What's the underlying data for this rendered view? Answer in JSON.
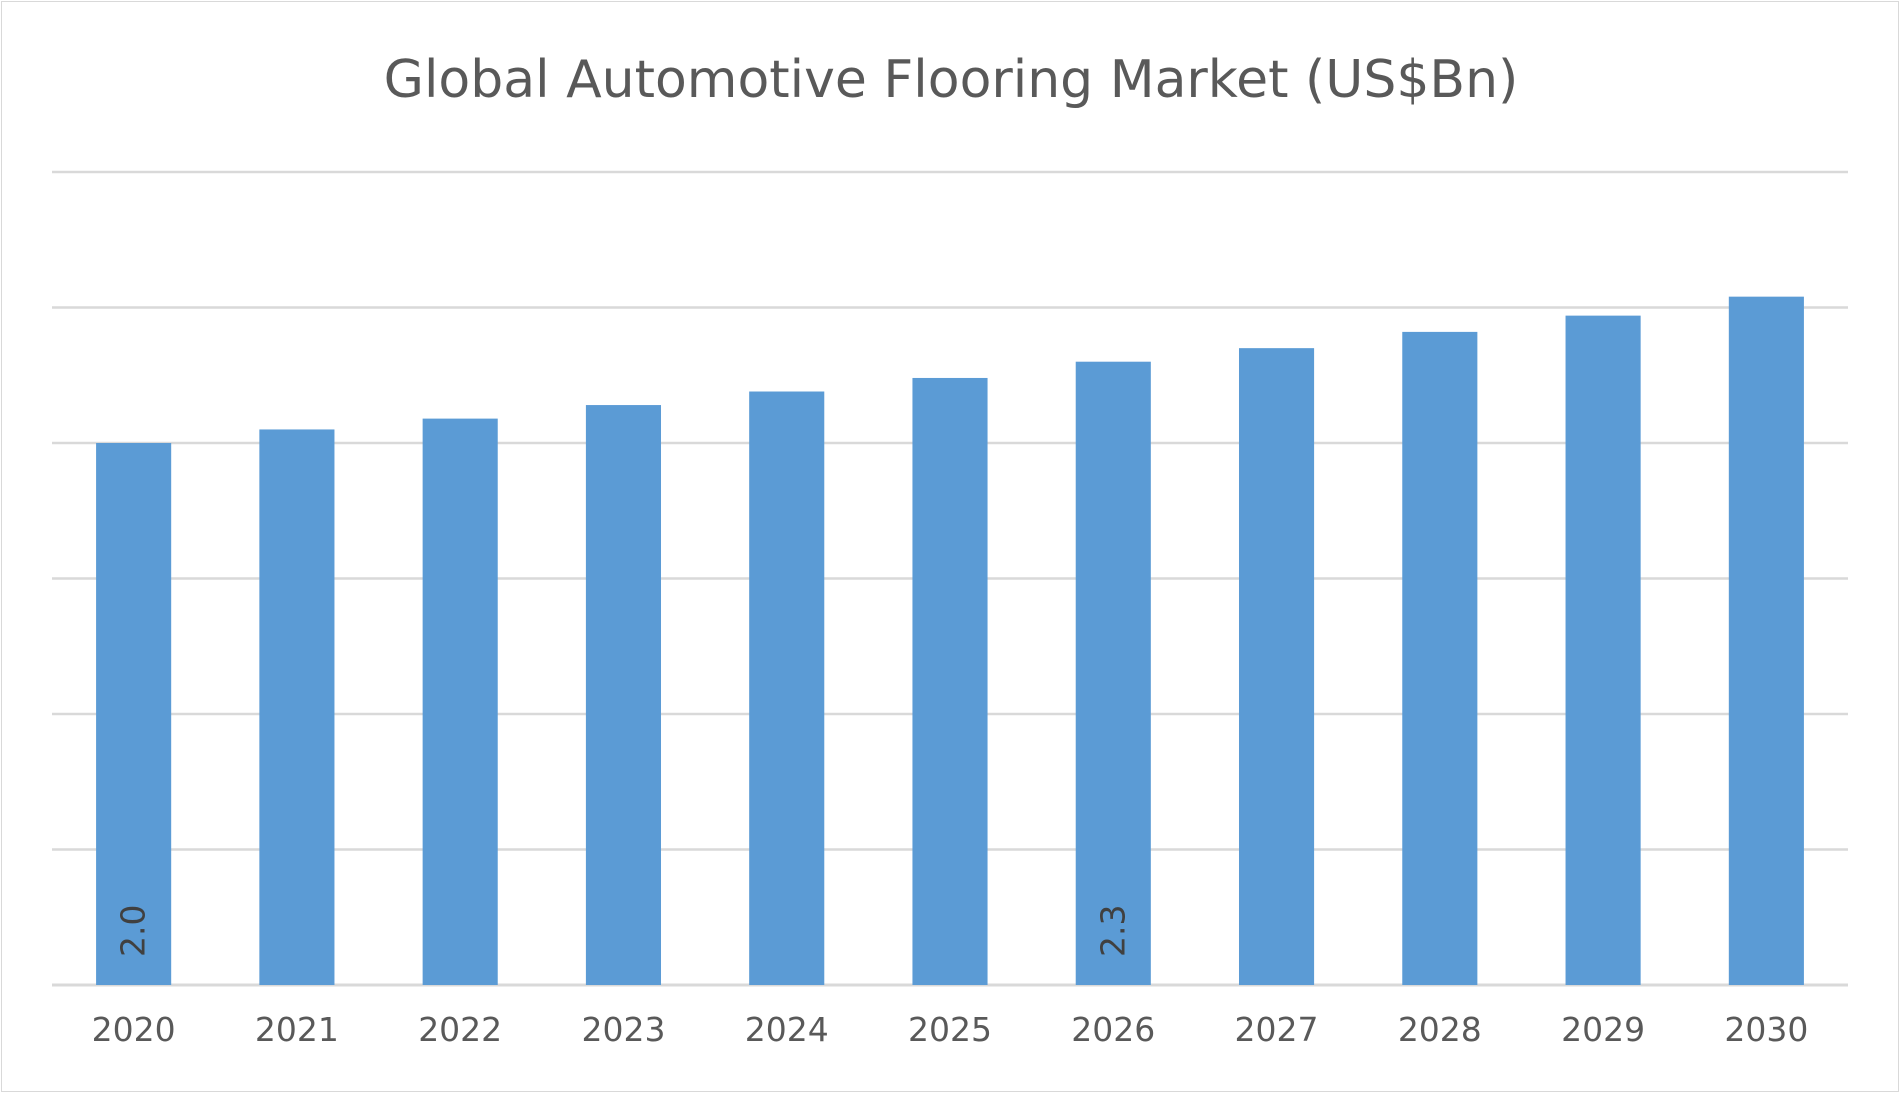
{
  "colors": {
    "bar": "#5b9bd5",
    "gridline": "#d9d9d9",
    "text": "#595959",
    "data_label": "#404040"
  },
  "chart_data": {
    "type": "bar",
    "title": "Global Automotive Flooring Market (US$Bn)",
    "xlabel": "",
    "ylabel": "",
    "categories": [
      "2020",
      "2021",
      "2022",
      "2023",
      "2024",
      "2025",
      "2026",
      "2027",
      "2028",
      "2029",
      "2030"
    ],
    "series": [
      {
        "values": [
          2.0,
          2.05,
          2.09,
          2.14,
          2.19,
          2.24,
          2.3,
          2.35,
          2.41,
          2.47,
          2.54
        ],
        "color": "#5b9bd5"
      }
    ],
    "data_labels": [
      {
        "category": "2020",
        "text": "2.0"
      },
      {
        "category": "2026",
        "text": "2.3"
      }
    ],
    "ylim": [
      0,
      3
    ],
    "gridlines": true,
    "y_tick_labels_visible": false,
    "legend": "none"
  }
}
